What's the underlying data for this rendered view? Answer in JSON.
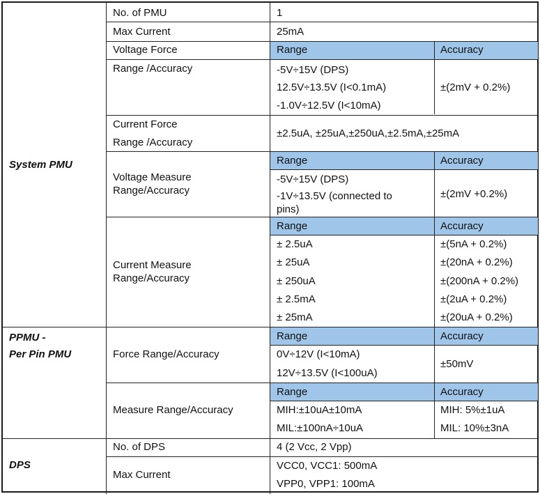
{
  "groups": {
    "system_pmu": "System PMU",
    "ppmu_line1": "PPMU -",
    "ppmu_line2": "Per Pin PMU",
    "dps": "DPS"
  },
  "system_pmu": {
    "no_of_pmu_label": "No. of PMU",
    "no_of_pmu_value": "1",
    "max_current_label": "Max Current",
    "max_current_value": "25mA",
    "voltage_force_label": "Voltage Force",
    "range_header": "Range",
    "accuracy_header": "Accuracy",
    "vf_range_accuracy_label": "Range /Accuracy",
    "vf_ranges": [
      "-5V÷15V (DPS)",
      "12.5V÷13.5V (I<0.1mA)",
      "-1.0V÷12.5V (I<10mA)"
    ],
    "vf_accuracy": "±(2mV + 0.2%)",
    "current_force_label_1": "Current Force",
    "current_force_label_2": "Range /Accuracy",
    "current_force_value": "±2.5uA, ±25uA,±250uA,±2.5mA,±25mA",
    "vm_label_1": "Voltage Measure",
    "vm_label_2": "Range/Accuracy",
    "vm_ranges": [
      "-5V÷15V (DPS)",
      "-1V÷13.5V (connected to",
      "pins)"
    ],
    "vm_accuracy": "±(2mV +0.2%)",
    "cm_label_1": "Current Measure",
    "cm_label_2": "Range/Accuracy",
    "cm_rows": [
      {
        "range": "± 2.5uA",
        "accuracy": "±(5nA + 0.2%)"
      },
      {
        "range": "± 25uA",
        "accuracy": "±(20nA + 0.2%)"
      },
      {
        "range": "± 250uA",
        "accuracy": "±(200nA + 0.2%)"
      },
      {
        "range": "± 2.5mA",
        "accuracy": "±(2uA + 0.2%)"
      },
      {
        "range": "± 25mA",
        "accuracy": "±(20uA + 0.2%)"
      }
    ]
  },
  "ppmu": {
    "force_label": "Force Range/Accuracy",
    "force_ranges": [
      "0V÷12V (I<10mA)",
      "12V÷13.5V (I<100uA)"
    ],
    "force_accuracy": "±50mV",
    "measure_label": "Measure Range/Accuracy",
    "measure_rows": [
      {
        "range": "MIH:±10uA±10mA",
        "accuracy": "MIH: 5%±1uA"
      },
      {
        "range": "MIL:±100nA÷10uA",
        "accuracy": "MIL: 10%±3nA"
      }
    ]
  },
  "dps": {
    "no_of_dps_label": "No. of DPS",
    "no_of_dps_value": "4 (2 Vcc, 2 Vpp)",
    "max_current_label": "Max Current",
    "max_current_values": [
      "VCC0, VCC1: 500mA",
      "VPP0, VPP1: 100mA"
    ]
  }
}
